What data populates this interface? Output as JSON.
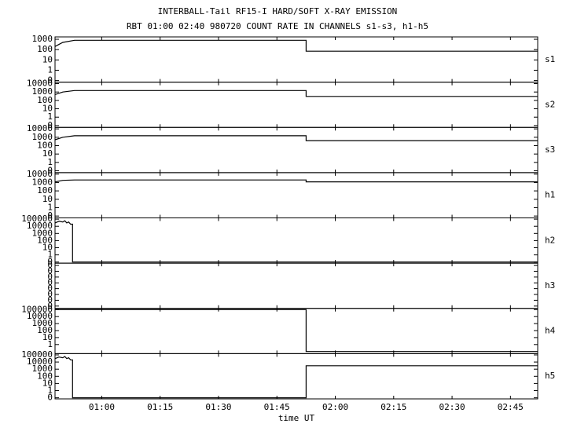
{
  "chart_data": [
    {
      "type": "line",
      "title": "INTERBALL-Tail RF15-I HARD/SOFT X-RAY EMISSION",
      "subtitle": "RBT 01:00 02:40 980720  COUNT RATE IN CHANNELS s1-s3, h1-h5",
      "label": "s1",
      "log_scale": true,
      "color": "#000000",
      "xlim": [
        48,
        172
      ],
      "ylim": [
        0.07,
        1700
      ],
      "yticks": [
        {
          "value": 0.1,
          "label": "0"
        },
        1,
        10,
        100,
        1000
      ],
      "x": [
        48,
        50,
        53,
        112.5,
        112.5,
        172
      ],
      "values": [
        200,
        500,
        800,
        800,
        70,
        70
      ]
    },
    {
      "type": "line",
      "label": "s2",
      "log_scale": true,
      "color": "#000000",
      "xlim": [
        48,
        172
      ],
      "ylim": [
        0.06,
        15000
      ],
      "yticks": [
        {
          "value": 0.1,
          "label": "0"
        },
        1,
        10,
        100,
        1000,
        10000
      ],
      "x": [
        48,
        50,
        53,
        112.5,
        112.5,
        172
      ],
      "values": [
        500,
        1000,
        1500,
        1500,
        300,
        300
      ]
    },
    {
      "type": "line",
      "label": "s3",
      "log_scale": true,
      "color": "#000000",
      "xlim": [
        48,
        172
      ],
      "ylim": [
        0.06,
        15000
      ],
      "yticks": [
        {
          "value": 0.1,
          "label": "0"
        },
        1,
        10,
        100,
        1000,
        10000
      ],
      "x": [
        48,
        50,
        53,
        112.5,
        112.5,
        172
      ],
      "values": [
        500,
        1000,
        1500,
        1500,
        400,
        400
      ]
    },
    {
      "type": "line",
      "label": "h1",
      "log_scale": true,
      "color": "#000000",
      "xlim": [
        48,
        172
      ],
      "ylim": [
        0.06,
        15000
      ],
      "yticks": [
        {
          "value": 0.1,
          "label": "0"
        },
        1,
        10,
        100,
        1000,
        10000
      ],
      "x": [
        48,
        50,
        53,
        112.5,
        112.5,
        172
      ],
      "values": [
        1200,
        1800,
        2000,
        2000,
        1200,
        1200
      ]
    },
    {
      "type": "line",
      "label": "h2",
      "log_scale": true,
      "color": "#000000",
      "xlim": [
        48,
        172
      ],
      "ylim": [
        0.07,
        150000
      ],
      "yticks": [
        {
          "value": 0.1,
          "label": "0"
        },
        1,
        10,
        100,
        1000,
        10000,
        100000
      ],
      "x": [
        48,
        49,
        50,
        50.5,
        51,
        51.5,
        52,
        52.5,
        52.5,
        172
      ],
      "values": [
        30000,
        50000,
        40000,
        60000,
        30000,
        40000,
        20000,
        20000,
        0.1,
        0.1
      ]
    },
    {
      "type": "line",
      "label": "h3",
      "log_scale": false,
      "color": "#000000",
      "xlim": [
        48,
        172
      ],
      "ylim": [
        -0.4,
        7.4
      ],
      "yticks": [
        {
          "value": 0,
          "label": "0"
        },
        {
          "value": 1,
          "label": "0"
        },
        {
          "value": 2,
          "label": "0"
        },
        {
          "value": 3,
          "label": "0"
        },
        {
          "value": 4,
          "label": "0"
        },
        {
          "value": 5,
          "label": "0"
        },
        {
          "value": 6,
          "label": "0"
        },
        {
          "value": 7,
          "label": "0"
        }
      ],
      "x": [],
      "values": []
    },
    {
      "type": "line",
      "label": "h4",
      "log_scale": true,
      "color": "#000000",
      "xlim": [
        48,
        172
      ],
      "ylim": [
        0.05,
        150000
      ],
      "yticks": [
        1,
        10,
        100,
        1000,
        10000,
        100000
      ],
      "x": [
        48,
        112.5,
        112.5,
        172
      ],
      "values": [
        100000,
        100000,
        0.1,
        0.1
      ]
    },
    {
      "type": "line",
      "label": "h5",
      "log_scale": true,
      "color": "#000000",
      "xlim": [
        48,
        172
      ],
      "ylim": [
        0.07,
        150000
      ],
      "yticks": [
        {
          "value": 0.1,
          "label": "0"
        },
        1,
        10,
        100,
        1000,
        10000,
        100000
      ],
      "x": [
        48,
        49,
        50,
        50.5,
        51,
        51.5,
        52,
        52.5,
        52.5,
        112.5,
        112.5,
        172
      ],
      "values": [
        30000,
        50000,
        40000,
        60000,
        30000,
        40000,
        20000,
        20000,
        0.1,
        0.1,
        3000,
        3000
      ],
      "xlabel": "time UT",
      "xticks": [
        {
          "value": 60,
          "label": "01:00"
        },
        {
          "value": 75,
          "label": "01:15"
        },
        {
          "value": 90,
          "label": "01:30"
        },
        {
          "value": 105,
          "label": "01:45"
        },
        {
          "value": 120,
          "label": "02:00"
        },
        {
          "value": 135,
          "label": "02:15"
        },
        {
          "value": 150,
          "label": "02:30"
        },
        {
          "value": 165,
          "label": "02:45"
        }
      ]
    }
  ]
}
